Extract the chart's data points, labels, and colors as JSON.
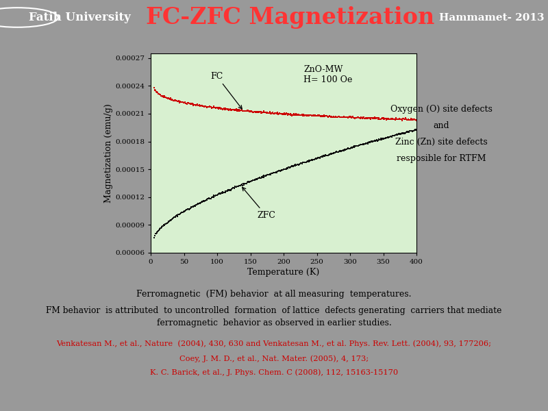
{
  "title": "FC-ZFC Magnetization",
  "title_color": "#FF3333",
  "title_fontsize": 24,
  "bg_outer": "#999999",
  "bg_header": "#888888",
  "bg_plot_panel": "#c8e8c0",
  "bg_plot_area": "#d8f0d0",
  "xlabel": "Temperature (K)",
  "ylabel": "Magnetization (emu/g)",
  "xlim": [
    0,
    400
  ],
  "ylim": [
    6e-05,
    0.000275
  ],
  "yticks": [
    6e-05,
    9e-05,
    0.00012,
    0.00015,
    0.00018,
    0.00021,
    0.00024,
    0.00027
  ],
  "xticks": [
    0,
    50,
    100,
    150,
    200,
    250,
    300,
    350,
    400
  ],
  "fc_color": "#cc0000",
  "zfc_color": "#111111",
  "annotation_text_sample": "ZnO-MW\nH= 100 Oe",
  "right_text_line1": "Oxygen (O) site defects",
  "right_text_line2": "and",
  "right_text_line3": "Zinc (Zn) site defects",
  "right_text_line4": "resposible for RTFM",
  "header_right": "Hammamet- 2013",
  "header_left": "Fatih University",
  "header_left_bg": "#1a1a5e",
  "header_right_bg": "#b8860b",
  "bottom_text1": "Ferromagnetic  (FM) behavior  at all measuring  temperatures.",
  "bottom_text2": "FM behavior  is attributed  to uncontrolled  formation  of lattice  defects generating  carriers that mediate",
  "bottom_text3": "ferromagnetic  behavior as observed in earlier studies.",
  "ref1": "Venkatesan M., et al., Nature  (2004), 430, 630 and Venkatesan M., et al. Phys. Rev. Lett. (2004), 93, 177206;",
  "ref2": "Coey, J. M. D., et al., Nat. Mater. (2005), 4, 173;",
  "ref3": "K. C. Barick, et al., J. Phys. Chem. C (2008), 112, 15163-15170"
}
